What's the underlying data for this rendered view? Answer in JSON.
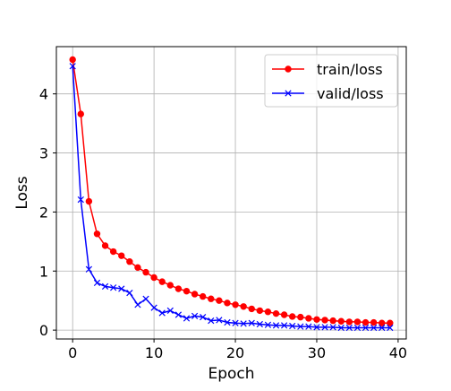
{
  "chart_data": {
    "type": "line",
    "title": "",
    "xlabel": "Epoch",
    "ylabel": "Loss",
    "xlim": [
      -2,
      41
    ],
    "ylim": [
      -0.15,
      4.8
    ],
    "xticks": [
      0,
      10,
      20,
      30,
      40
    ],
    "yticks": [
      0,
      1,
      2,
      3,
      4
    ],
    "grid": true,
    "legend_position": "upper right",
    "x": [
      0,
      1,
      2,
      3,
      4,
      5,
      6,
      7,
      8,
      9,
      10,
      11,
      12,
      13,
      14,
      15,
      16,
      17,
      18,
      19,
      20,
      21,
      22,
      23,
      24,
      25,
      26,
      27,
      28,
      29,
      30,
      31,
      32,
      33,
      34,
      35,
      36,
      37,
      38,
      39
    ],
    "series": [
      {
        "name": "train/loss",
        "color": "#ff0000",
        "marker": "circle",
        "values": [
          4.58,
          3.66,
          2.18,
          1.63,
          1.43,
          1.33,
          1.26,
          1.16,
          1.06,
          0.98,
          0.89,
          0.82,
          0.76,
          0.7,
          0.66,
          0.61,
          0.57,
          0.53,
          0.5,
          0.46,
          0.43,
          0.4,
          0.36,
          0.33,
          0.31,
          0.28,
          0.26,
          0.23,
          0.22,
          0.2,
          0.18,
          0.17,
          0.16,
          0.15,
          0.14,
          0.14,
          0.13,
          0.13,
          0.12,
          0.12
        ]
      },
      {
        "name": "valid/loss",
        "color": "#0000ff",
        "marker": "x",
        "values": [
          4.47,
          2.21,
          1.03,
          0.8,
          0.74,
          0.72,
          0.7,
          0.63,
          0.43,
          0.53,
          0.38,
          0.29,
          0.33,
          0.26,
          0.2,
          0.24,
          0.22,
          0.16,
          0.17,
          0.13,
          0.12,
          0.11,
          0.12,
          0.1,
          0.09,
          0.08,
          0.08,
          0.07,
          0.06,
          0.06,
          0.05,
          0.05,
          0.05,
          0.04,
          0.04,
          0.04,
          0.04,
          0.04,
          0.04,
          0.04
        ]
      }
    ]
  }
}
